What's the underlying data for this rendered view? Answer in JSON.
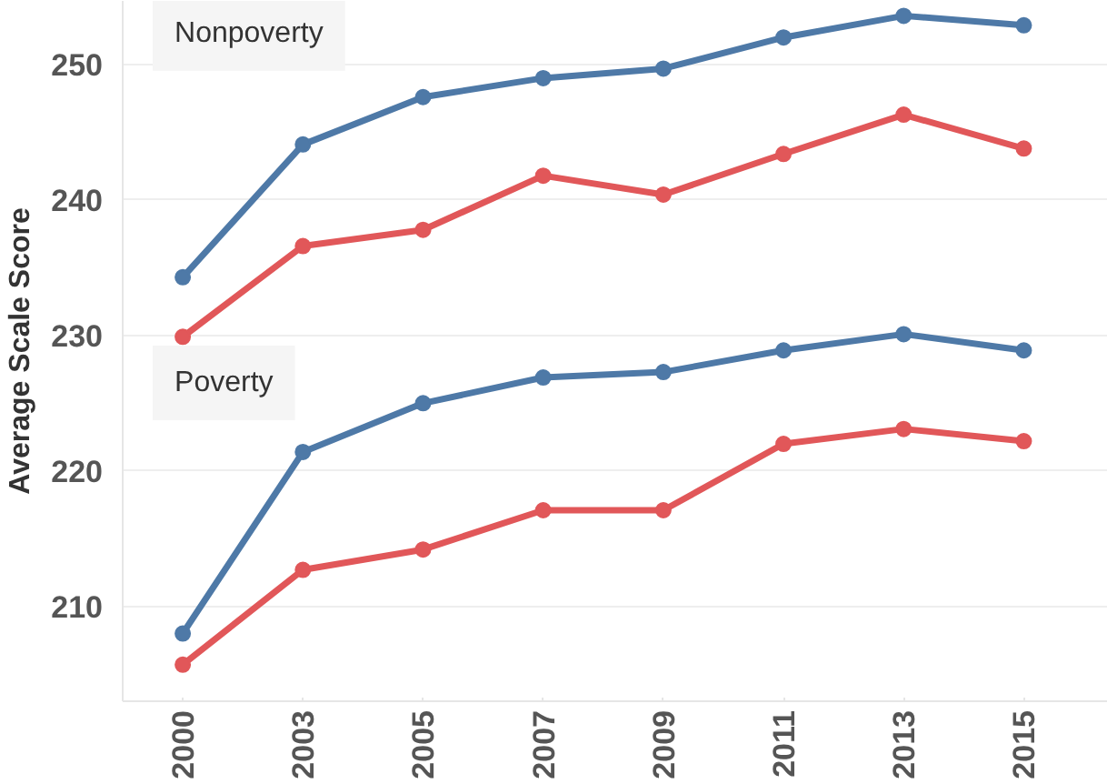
{
  "chart_data": {
    "type": "line",
    "ylabel": "Average Scale Score",
    "categories": [
      "2000",
      "2003",
      "2005",
      "2007",
      "2009",
      "2011",
      "2013",
      "2015"
    ],
    "series": [
      {
        "color": "#4e79a7",
        "values": [
          234.3,
          244.1,
          247.6,
          249.0,
          249.7,
          252.0,
          253.6,
          252.9
        ]
      },
      {
        "color": "#e15759",
        "values": [
          229.9,
          236.6,
          237.8,
          241.8,
          240.4,
          243.4,
          246.3,
          243.8
        ]
      },
      {
        "color": "#4e79a7",
        "values": [
          208.0,
          221.4,
          225.0,
          226.9,
          227.3,
          228.9,
          230.1,
          228.9
        ]
      },
      {
        "color": "#e15759",
        "values": [
          205.7,
          212.7,
          214.2,
          217.1,
          217.1,
          222.0,
          223.1,
          222.2
        ]
      }
    ],
    "annotations": [
      "Nonpoverty",
      "Poverty"
    ],
    "ylim": [
      203,
      254.7
    ],
    "yticks": [
      210,
      220,
      230,
      240,
      250
    ],
    "grid": "y",
    "marker": "circle",
    "line_style": "solid"
  }
}
